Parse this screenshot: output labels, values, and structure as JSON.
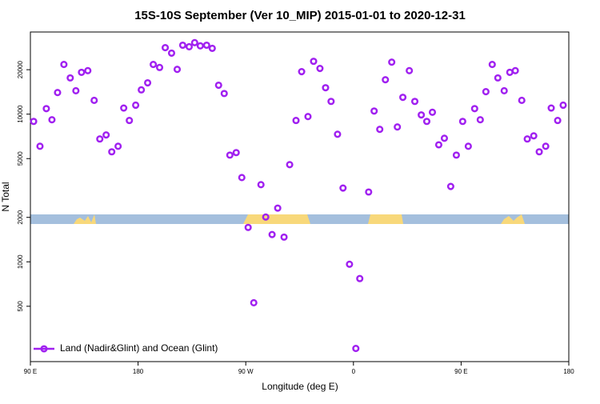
{
  "chart_data": {
    "type": "scatter",
    "title": "15S-10S September (Ver 10_MIP)   2015-01-01 to 2020-12-31",
    "x_label": "Longitude (deg E)",
    "y_label": "N Total",
    "xlim": [
      90,
      540
    ],
    "xticks": [
      {
        "value": 90,
        "label": "90 E"
      },
      180,
      {
        "value": 270,
        "label": "90 W"
      },
      {
        "value": 360,
        "label": "0"
      },
      {
        "value": 450,
        "label": "90 E"
      },
      {
        "value": 540,
        "label": "180"
      }
    ],
    "ylim": [
      211,
      36000
    ],
    "yticks": [
      500,
      1000,
      2000,
      5000,
      10000,
      20000
    ],
    "log_y": true,
    "grid": false,
    "legend": "bottom-left",
    "series": [
      {
        "name": "Land (Nadir&Glint) and Ocean (Glint)",
        "color": "#a020f0",
        "x": [
          92.7,
          98,
          103.3,
          108,
          112.7,
          118,
          123.3,
          128,
          132.7,
          138,
          143.3,
          148,
          153.3,
          158,
          163.3,
          168,
          172.7,
          178,
          182.7,
          188,
          192.7,
          198,
          202.7,
          208,
          212.7,
          217.3,
          222.7,
          227.3,
          232,
          237.3,
          242,
          247.3,
          252,
          256.7,
          262,
          266.7,
          272,
          276.7,
          282.7,
          286.7,
          292,
          296.7,
          302,
          306.7,
          312,
          316.7,
          322,
          326.7,
          332,
          336.7,
          341.3,
          346.7,
          351.3,
          356.7,
          362,
          365.3,
          372.7,
          377.3,
          382,
          386.7,
          392,
          396.7,
          401.3,
          406.7,
          411.3,
          416.7,
          421.3,
          426,
          431.3,
          436,
          441.3,
          446,
          451.3,
          456,
          461.3,
          466,
          470.7,
          476,
          480.7,
          486,
          490.7,
          495.3,
          500.7,
          505.3,
          510.7,
          515.3,
          520.7,
          525.3,
          530.7,
          535.3
        ],
        "values": [
          8930,
          6060,
          10900,
          9160,
          14000,
          21700,
          17600,
          14400,
          19200,
          19700,
          12400,
          6790,
          7230,
          5560,
          6060,
          11000,
          9060,
          11500,
          14600,
          16300,
          21700,
          20700,
          28200,
          25900,
          20100,
          29300,
          28600,
          30500,
          29000,
          29300,
          27900,
          15700,
          13800,
          5280,
          5490,
          3720,
          1710,
          528,
          3330,
          2010,
          1530,
          2310,
          1470,
          4550,
          9060,
          19400,
          9630,
          22800,
          20400,
          15100,
          12200,
          7310,
          3160,
          963,
          259,
          770,
          2970,
          10500,
          7890,
          17100,
          22500,
          8190,
          13000,
          19700,
          12200,
          9880,
          8930,
          10300,
          6200,
          6870,
          3240,
          5280,
          8930,
          6060,
          10900,
          9160,
          14200,
          21700,
          17600,
          14400,
          19200,
          19700,
          12400,
          6790,
          7130,
          5560,
          6060,
          11000,
          9060,
          11500
        ]
      }
    ]
  }
}
